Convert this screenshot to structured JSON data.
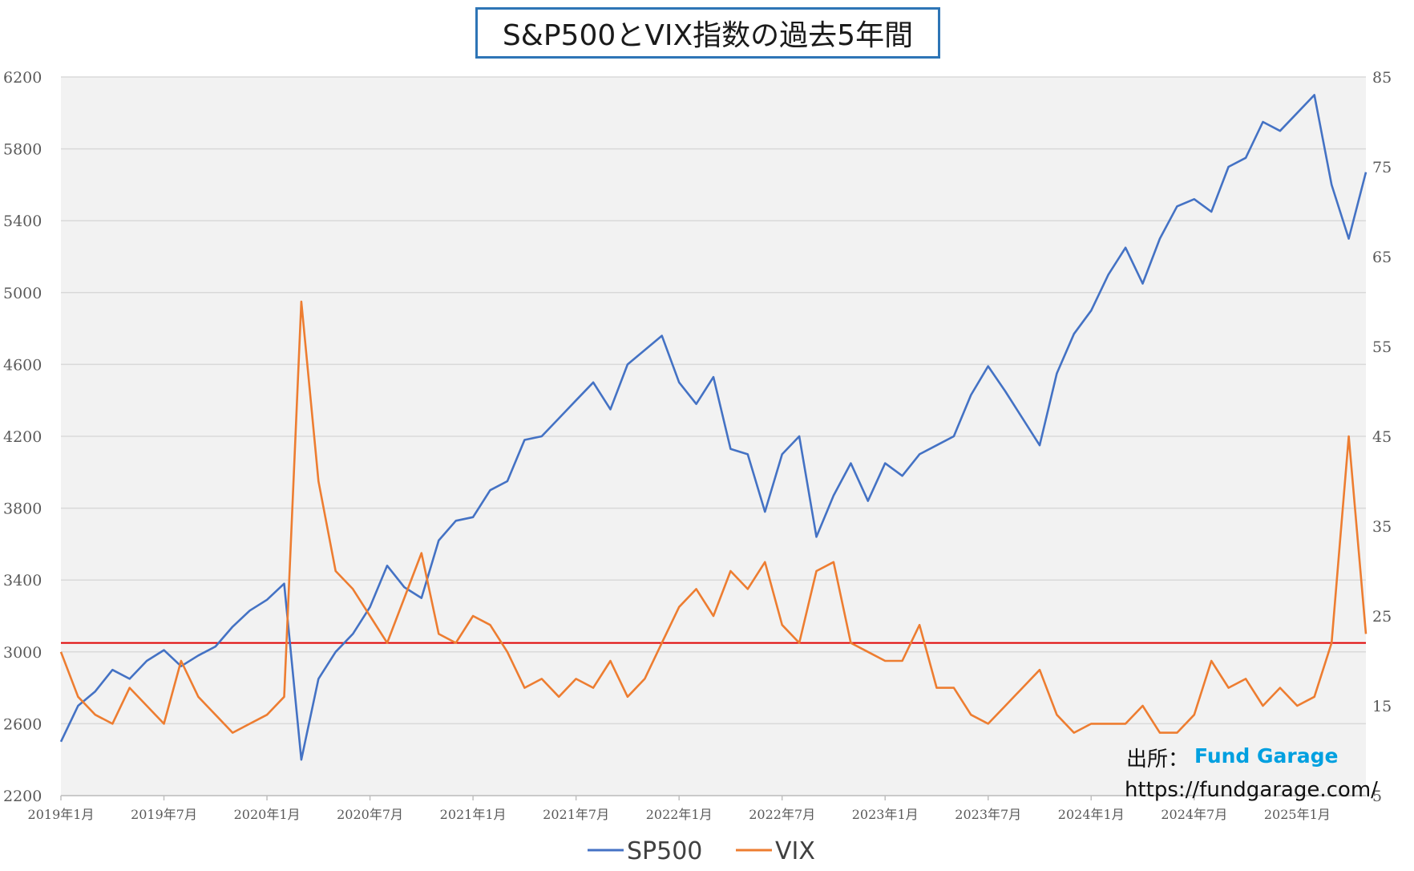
{
  "chart_data": {
    "type": "line",
    "title": "S&P500とVIX指数の過去5年間",
    "x_start": "2019-01",
    "x_end": "2025-05",
    "x_ticks": [
      "2019年1月",
      "2019年7月",
      "2020年1月",
      "2020年7月",
      "2021年1月",
      "2021年7月",
      "2022年1月",
      "2022年7月",
      "2023年1月",
      "2023年7月",
      "2024年1月",
      "2024年7月",
      "2025年1月"
    ],
    "y_left": {
      "min": 2200,
      "max": 6200,
      "ticks": [
        "2200",
        "2600",
        "3000",
        "3400",
        "3800",
        "4200",
        "4600",
        "5000",
        "5400",
        "5800",
        "6200"
      ]
    },
    "y_right": {
      "min": 5,
      "max": 85,
      "ticks": [
        "5",
        "15",
        "25",
        "35",
        "45",
        "55",
        "65",
        "75",
        "85"
      ]
    },
    "grid": true,
    "legend_position": "bottom",
    "reference_line": {
      "axis": "right",
      "value": 22,
      "color": "#e00000"
    },
    "series": [
      {
        "name": "SP500",
        "axis": "left",
        "color": "#4472c4",
        "x": [
          "2019-01",
          "2019-02",
          "2019-03",
          "2019-04",
          "2019-05",
          "2019-06",
          "2019-07",
          "2019-08",
          "2019-09",
          "2019-10",
          "2019-11",
          "2019-12",
          "2020-01",
          "2020-02",
          "2020-03",
          "2020-04",
          "2020-05",
          "2020-06",
          "2020-07",
          "2020-08",
          "2020-09",
          "2020-10",
          "2020-11",
          "2020-12",
          "2021-01",
          "2021-02",
          "2021-03",
          "2021-04",
          "2021-05",
          "2021-06",
          "2021-07",
          "2021-08",
          "2021-09",
          "2021-10",
          "2021-11",
          "2021-12",
          "2022-01",
          "2022-02",
          "2022-03",
          "2022-04",
          "2022-05",
          "2022-06",
          "2022-07",
          "2022-08",
          "2022-09",
          "2022-10",
          "2022-11",
          "2022-12",
          "2023-01",
          "2023-02",
          "2023-03",
          "2023-04",
          "2023-05",
          "2023-06",
          "2023-07",
          "2023-08",
          "2023-09",
          "2023-10",
          "2023-11",
          "2023-12",
          "2024-01",
          "2024-02",
          "2024-03",
          "2024-04",
          "2024-05",
          "2024-06",
          "2024-07",
          "2024-08",
          "2024-09",
          "2024-10",
          "2024-11",
          "2024-12",
          "2025-01",
          "2025-02",
          "2025-03",
          "2025-04",
          "2025-05"
        ],
        "values": [
          2500,
          2700,
          2780,
          2900,
          2850,
          2950,
          3010,
          2920,
          2980,
          3030,
          3140,
          3230,
          3290,
          3380,
          2400,
          2850,
          3000,
          3100,
          3250,
          3480,
          3360,
          3300,
          3620,
          3730,
          3750,
          3900,
          3950,
          4180,
          4200,
          4300,
          4400,
          4500,
          4350,
          4600,
          4680,
          4760,
          4500,
          4380,
          4530,
          4130,
          4100,
          3780,
          4100,
          4200,
          3640,
          3870,
          4050,
          3840,
          4050,
          3980,
          4100,
          4150,
          4200,
          4430,
          4590,
          4450,
          4300,
          4150,
          4550,
          4770,
          4900,
          5100,
          5250,
          5050,
          5300,
          5480,
          5520,
          5450,
          5700,
          5750,
          5950,
          5900,
          6000,
          6100,
          5600,
          5300,
          5670
        ]
      },
      {
        "name": "VIX",
        "axis": "right",
        "color": "#ed7d31",
        "x": [
          "2019-01",
          "2019-02",
          "2019-03",
          "2019-04",
          "2019-05",
          "2019-06",
          "2019-07",
          "2019-08",
          "2019-09",
          "2019-10",
          "2019-11",
          "2019-12",
          "2020-01",
          "2020-02",
          "2020-03",
          "2020-04",
          "2020-05",
          "2020-06",
          "2020-07",
          "2020-08",
          "2020-09",
          "2020-10",
          "2020-11",
          "2020-12",
          "2021-01",
          "2021-02",
          "2021-03",
          "2021-04",
          "2021-05",
          "2021-06",
          "2021-07",
          "2021-08",
          "2021-09",
          "2021-10",
          "2021-11",
          "2021-12",
          "2022-01",
          "2022-02",
          "2022-03",
          "2022-04",
          "2022-05",
          "2022-06",
          "2022-07",
          "2022-08",
          "2022-09",
          "2022-10",
          "2022-11",
          "2022-12",
          "2023-01",
          "2023-02",
          "2023-03",
          "2023-04",
          "2023-05",
          "2023-06",
          "2023-07",
          "2023-08",
          "2023-09",
          "2023-10",
          "2023-11",
          "2023-12",
          "2024-01",
          "2024-02",
          "2024-03",
          "2024-04",
          "2024-05",
          "2024-06",
          "2024-07",
          "2024-08",
          "2024-09",
          "2024-10",
          "2024-11",
          "2024-12",
          "2025-01",
          "2025-02",
          "2025-03",
          "2025-04",
          "2025-05"
        ],
        "values": [
          21,
          16,
          14,
          13,
          17,
          15,
          13,
          20,
          16,
          14,
          12,
          13,
          14,
          16,
          60,
          40,
          30,
          28,
          25,
          22,
          27,
          32,
          23,
          22,
          25,
          24,
          21,
          17,
          18,
          16,
          18,
          17,
          20,
          16,
          18,
          22,
          26,
          28,
          25,
          30,
          28,
          31,
          24,
          22,
          30,
          31,
          22,
          21,
          20,
          20,
          24,
          17,
          17,
          14,
          13,
          15,
          17,
          19,
          14,
          12,
          13,
          13,
          13,
          15,
          12,
          12,
          14,
          20,
          17,
          18,
          15,
          17,
          15,
          16,
          22,
          45,
          23
        ]
      }
    ]
  },
  "source": {
    "label": "出所：",
    "name": "Fund Garage",
    "url": "https://fundgarage.com/"
  }
}
